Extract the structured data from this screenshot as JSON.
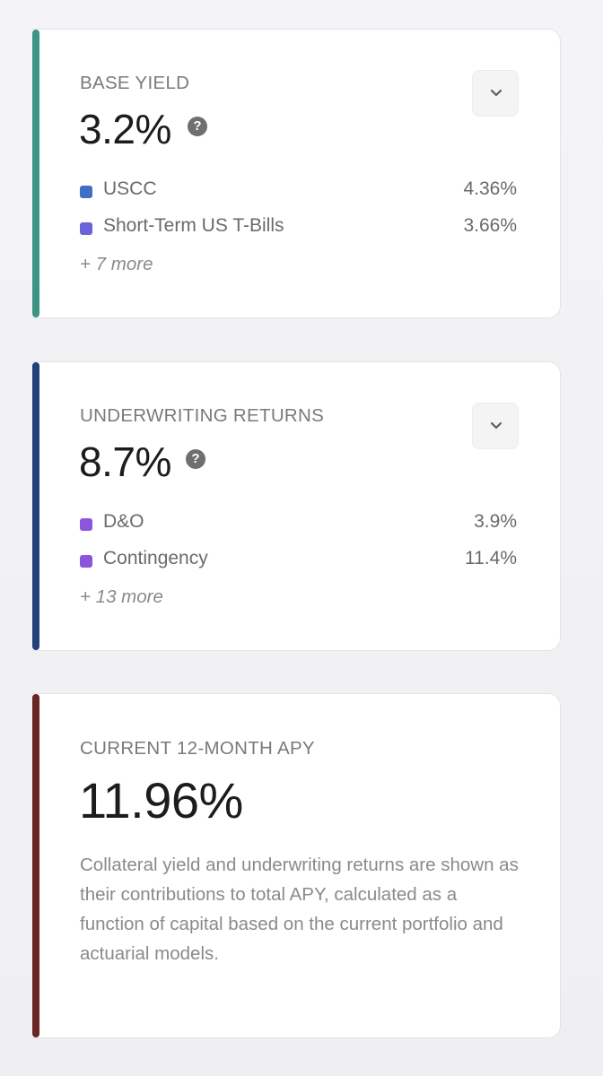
{
  "colors": {
    "accent_base": "#3d9485",
    "accent_under": "#233f7c",
    "accent_apy": "#6b2525",
    "dot_uscc": "#3f6fc4",
    "dot_tbills": "#6a62d8",
    "dot_dno": "#8a56de",
    "dot_contingency": "#8a56de"
  },
  "base_yield": {
    "label": "BASE YIELD",
    "value": "3.2%",
    "help_icon": "question-circle-icon",
    "toggle_icon": "chevron-down-icon",
    "items": [
      {
        "name": "USCC",
        "pct": "4.36%"
      },
      {
        "name": "Short-Term US T-Bills",
        "pct": "3.66%"
      }
    ],
    "more": "+ 7 more"
  },
  "underwriting": {
    "label": "UNDERWRITING RETURNS",
    "value": "8.7%",
    "help_icon": "question-circle-icon",
    "toggle_icon": "chevron-down-icon",
    "items": [
      {
        "name": "D&O",
        "pct": "3.9%"
      },
      {
        "name": "Contingency",
        "pct": "11.4%"
      }
    ],
    "more": "+ 13 more"
  },
  "apy": {
    "label": "CURRENT 12-MONTH APY",
    "value": "11.96%",
    "description": "Collateral yield and underwriting returns are shown as their contributions to total APY, calculated as a function of capital based on the current portfolio and actuarial models."
  }
}
